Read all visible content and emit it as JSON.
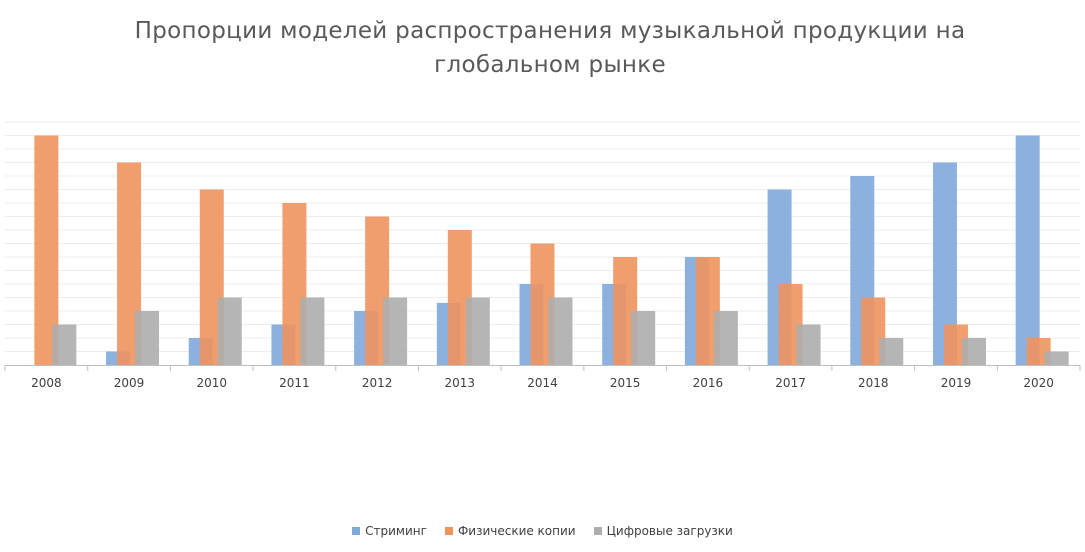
{
  "chart_data": {
    "type": "bar",
    "title": "Пропорции моделей распространения музыкальной продукции на глобальном рынке",
    "categories": [
      "2008",
      "2009",
      "2010",
      "2011",
      "2012",
      "2013",
      "2014",
      "2015",
      "2016",
      "2017",
      "2018",
      "2019",
      "2020"
    ],
    "series": [
      {
        "name": "Стриминг",
        "color": "#7FA8DB",
        "values": [
          0,
          1,
          2,
          3,
          4,
          4.6,
          6,
          6,
          8,
          13,
          14,
          15,
          17
        ]
      },
      {
        "name": "Физические копии",
        "color": "#F0945F",
        "values": [
          17,
          15,
          13,
          12,
          11,
          10,
          9,
          8,
          8,
          6,
          5,
          3,
          2
        ]
      },
      {
        "name": "Цифровые загрузки",
        "color": "#ADADAD",
        "values": [
          3,
          4,
          5,
          5,
          5,
          5,
          5,
          4,
          4,
          3,
          2,
          2,
          1
        ]
      }
    ],
    "ylim": [
      0,
      18
    ],
    "grid": true,
    "legend": "bottom"
  }
}
